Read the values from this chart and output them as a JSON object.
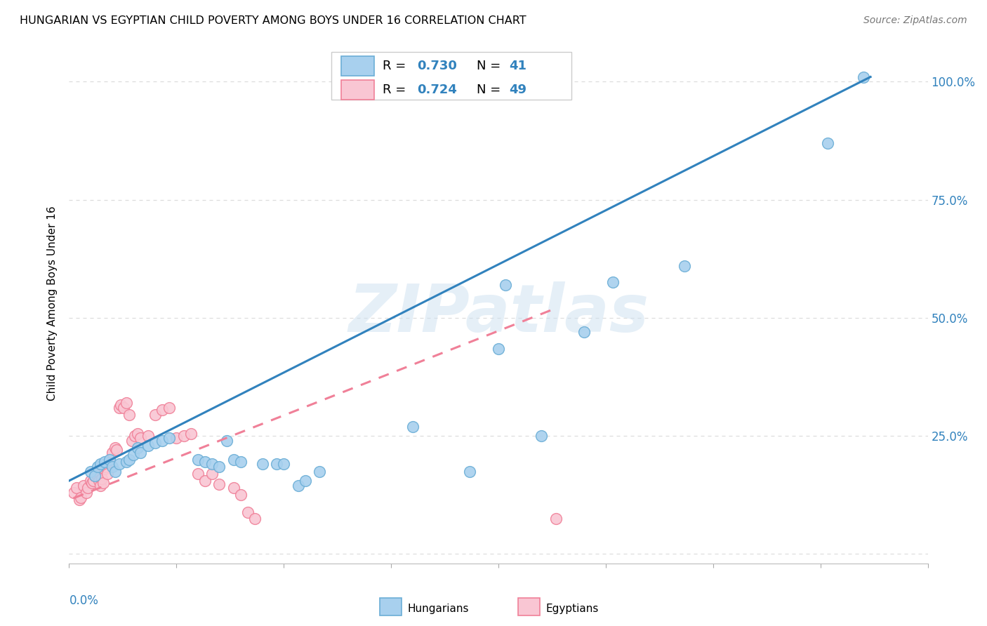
{
  "title": "HUNGARIAN VS EGYPTIAN CHILD POVERTY AMONG BOYS UNDER 16 CORRELATION CHART",
  "source": "Source: ZipAtlas.com",
  "ylabel": "Child Poverty Among Boys Under 16",
  "xlim": [
    0.0,
    0.6
  ],
  "ylim": [
    -0.02,
    1.08
  ],
  "legend_entries": [
    {
      "R": "0.730",
      "N": "41",
      "color": "#a8d0ee",
      "edge": "#6baed6"
    },
    {
      "R": "0.724",
      "N": "49",
      "color": "#f9c6d3",
      "edge": "#f08098"
    }
  ],
  "watermark": "ZIPatlas",
  "blue_scatter": [
    [
      0.015,
      0.175
    ],
    [
      0.018,
      0.165
    ],
    [
      0.02,
      0.185
    ],
    [
      0.022,
      0.19
    ],
    [
      0.025,
      0.195
    ],
    [
      0.028,
      0.2
    ],
    [
      0.03,
      0.185
    ],
    [
      0.032,
      0.175
    ],
    [
      0.035,
      0.19
    ],
    [
      0.04,
      0.195
    ],
    [
      0.042,
      0.2
    ],
    [
      0.045,
      0.21
    ],
    [
      0.048,
      0.225
    ],
    [
      0.05,
      0.215
    ],
    [
      0.055,
      0.23
    ],
    [
      0.06,
      0.235
    ],
    [
      0.065,
      0.24
    ],
    [
      0.07,
      0.245
    ],
    [
      0.09,
      0.2
    ],
    [
      0.095,
      0.195
    ],
    [
      0.1,
      0.19
    ],
    [
      0.105,
      0.185
    ],
    [
      0.11,
      0.24
    ],
    [
      0.115,
      0.2
    ],
    [
      0.12,
      0.195
    ],
    [
      0.135,
      0.19
    ],
    [
      0.145,
      0.19
    ],
    [
      0.15,
      0.19
    ],
    [
      0.16,
      0.145
    ],
    [
      0.165,
      0.155
    ],
    [
      0.175,
      0.175
    ],
    [
      0.24,
      0.27
    ],
    [
      0.28,
      0.175
    ],
    [
      0.3,
      0.435
    ],
    [
      0.305,
      0.57
    ],
    [
      0.33,
      0.25
    ],
    [
      0.36,
      0.47
    ],
    [
      0.38,
      0.575
    ],
    [
      0.43,
      0.61
    ],
    [
      0.53,
      0.87
    ],
    [
      0.555,
      1.01
    ]
  ],
  "pink_scatter": [
    [
      0.003,
      0.13
    ],
    [
      0.005,
      0.14
    ],
    [
      0.007,
      0.115
    ],
    [
      0.008,
      0.12
    ],
    [
      0.01,
      0.145
    ],
    [
      0.012,
      0.13
    ],
    [
      0.013,
      0.14
    ],
    [
      0.015,
      0.155
    ],
    [
      0.016,
      0.15
    ],
    [
      0.017,
      0.155
    ],
    [
      0.018,
      0.165
    ],
    [
      0.019,
      0.17
    ],
    [
      0.02,
      0.165
    ],
    [
      0.021,
      0.155
    ],
    [
      0.022,
      0.145
    ],
    [
      0.023,
      0.16
    ],
    [
      0.024,
      0.15
    ],
    [
      0.025,
      0.18
    ],
    [
      0.026,
      0.185
    ],
    [
      0.027,
      0.17
    ],
    [
      0.028,
      0.195
    ],
    [
      0.03,
      0.215
    ],
    [
      0.032,
      0.225
    ],
    [
      0.033,
      0.22
    ],
    [
      0.035,
      0.31
    ],
    [
      0.036,
      0.315
    ],
    [
      0.038,
      0.31
    ],
    [
      0.04,
      0.32
    ],
    [
      0.042,
      0.295
    ],
    [
      0.044,
      0.24
    ],
    [
      0.046,
      0.25
    ],
    [
      0.048,
      0.255
    ],
    [
      0.05,
      0.245
    ],
    [
      0.055,
      0.25
    ],
    [
      0.06,
      0.295
    ],
    [
      0.065,
      0.305
    ],
    [
      0.07,
      0.31
    ],
    [
      0.075,
      0.245
    ],
    [
      0.08,
      0.25
    ],
    [
      0.085,
      0.255
    ],
    [
      0.09,
      0.17
    ],
    [
      0.095,
      0.155
    ],
    [
      0.1,
      0.17
    ],
    [
      0.105,
      0.148
    ],
    [
      0.115,
      0.14
    ],
    [
      0.12,
      0.125
    ],
    [
      0.125,
      0.088
    ],
    [
      0.13,
      0.075
    ],
    [
      0.34,
      0.075
    ]
  ],
  "blue_line_pts": [
    [
      0.0,
      0.155
    ],
    [
      0.56,
      1.01
    ]
  ],
  "pink_line_pts": [
    [
      0.003,
      0.118
    ],
    [
      0.34,
      0.52
    ]
  ],
  "grid_color": "#dddddd",
  "scatter_size": 130
}
